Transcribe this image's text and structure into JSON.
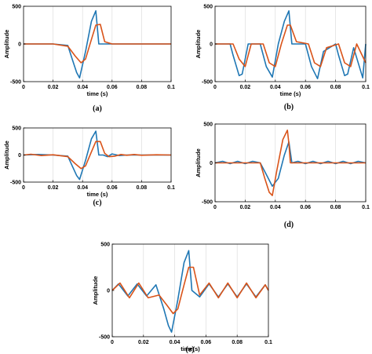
{
  "series_colors": [
    "#1f77b4",
    "#d95319"
  ],
  "chart_data": [
    {
      "type": "line",
      "caption": "(a)",
      "xlabel": "time (s)",
      "ylabel": "Amplitude",
      "xlim": [
        0,
        0.1
      ],
      "ylim": [
        -500,
        500
      ],
      "grid": "vertical",
      "xticks": [
        "0",
        "0.02",
        "0.04",
        "0.06",
        "0.08",
        "0.1"
      ],
      "yticks": [
        "-500",
        "0",
        "500"
      ],
      "series": [
        {
          "x": [
            0,
            0.02,
            0.03,
            0.033,
            0.036,
            0.038,
            0.042,
            0.046,
            0.049,
            0.051,
            0.055,
            0.1
          ],
          "y": [
            0,
            0,
            -20,
            -200,
            -380,
            -450,
            -100,
            300,
            440,
            0,
            0,
            0
          ]
        },
        {
          "x": [
            0,
            0.02,
            0.03,
            0.035,
            0.039,
            0.042,
            0.046,
            0.049,
            0.052,
            0.055,
            0.06,
            0.1
          ],
          "y": [
            0,
            0,
            -30,
            -160,
            -250,
            -200,
            60,
            250,
            260,
            30,
            0,
            0
          ]
        }
      ]
    },
    {
      "type": "line",
      "caption": "(b)",
      "xlabel": "time (s)",
      "ylabel": "Amplitude",
      "xlim": [
        0,
        0.1
      ],
      "ylim": [
        -500,
        500
      ],
      "grid": "vertical",
      "xticks": [
        "0",
        "0.02",
        "0.04",
        "0.06",
        "0.08",
        "0.1"
      ],
      "yticks": [
        "-500",
        "0",
        "500"
      ],
      "series": [
        {
          "x": [
            0,
            0.01,
            0.012,
            0.016,
            0.018,
            0.022,
            0.03,
            0.034,
            0.038,
            0.042,
            0.046,
            0.049,
            0.051,
            0.06,
            0.064,
            0.068,
            0.072,
            0.08,
            0.082,
            0.086,
            0.088,
            0.092,
            0.098,
            0.1
          ],
          "y": [
            0,
            0,
            -150,
            -420,
            -400,
            0,
            0,
            -300,
            -440,
            0,
            300,
            440,
            0,
            0,
            -300,
            -460,
            -100,
            0,
            -150,
            -420,
            -400,
            -50,
            -450,
            0
          ]
        },
        {
          "x": [
            0,
            0.012,
            0.016,
            0.02,
            0.024,
            0.032,
            0.036,
            0.04,
            0.044,
            0.048,
            0.05,
            0.054,
            0.062,
            0.066,
            0.07,
            0.074,
            0.082,
            0.086,
            0.09,
            0.094,
            0.1
          ],
          "y": [
            0,
            0,
            -200,
            -300,
            0,
            0,
            -250,
            -300,
            0,
            250,
            250,
            30,
            0,
            -250,
            -300,
            -50,
            0,
            -250,
            -300,
            0,
            -250
          ]
        }
      ]
    },
    {
      "type": "line",
      "caption": "(c)",
      "xlabel": "time (s)",
      "ylabel": "Amplitude",
      "xlim": [
        0,
        0.1
      ],
      "ylim": [
        -500,
        500
      ],
      "grid": "vertical",
      "xticks": [
        "0",
        "0.02",
        "0.04",
        "0.06",
        "0.08",
        "0.1"
      ],
      "yticks": [
        "-500",
        "0",
        "500"
      ],
      "series": [
        {
          "x": [
            0,
            0.01,
            0.02,
            0.03,
            0.033,
            0.036,
            0.038,
            0.042,
            0.046,
            0.049,
            0.051,
            0.054,
            0.057,
            0.06,
            0.065,
            0.07,
            0.1
          ],
          "y": [
            0,
            10,
            0,
            -20,
            -200,
            -380,
            -450,
            -100,
            300,
            440,
            0,
            0,
            -30,
            20,
            -10,
            0,
            0
          ]
        },
        {
          "x": [
            0,
            0.005,
            0.012,
            0.02,
            0.03,
            0.035,
            0.039,
            0.042,
            0.046,
            0.049,
            0.052,
            0.055,
            0.058,
            0.062,
            0.066,
            0.07,
            0.075,
            0.08,
            0.09,
            0.1
          ],
          "y": [
            0,
            15,
            -10,
            5,
            -30,
            -160,
            -250,
            -200,
            60,
            250,
            250,
            30,
            -30,
            -20,
            10,
            -5,
            10,
            -5,
            5,
            0
          ]
        }
      ]
    },
    {
      "type": "line",
      "caption": "(d)",
      "xlabel": "",
      "ylabel": "Amplitude",
      "xlim": [
        0,
        0.1
      ],
      "ylim": [
        -500,
        500
      ],
      "grid": "vertical",
      "xticks": [
        "0",
        "0.02",
        "0.04",
        "0.06",
        "0.08",
        "0.1"
      ],
      "yticks": [
        "-500",
        "0",
        "500"
      ],
      "series": [
        {
          "x": [
            0,
            0.005,
            0.01,
            0.015,
            0.02,
            0.025,
            0.03,
            0.034,
            0.038,
            0.042,
            0.046,
            0.049,
            0.051,
            0.055,
            0.06,
            0.065,
            0.07,
            0.075,
            0.08,
            0.085,
            0.09,
            0.095,
            0.1
          ],
          "y": [
            0,
            20,
            -10,
            20,
            -10,
            20,
            0,
            -150,
            -300,
            -200,
            100,
            270,
            0,
            20,
            -10,
            20,
            -10,
            20,
            -10,
            20,
            -10,
            20,
            0
          ]
        },
        {
          "x": [
            0,
            0.03,
            0.033,
            0.036,
            0.038,
            0.041,
            0.045,
            0.048,
            0.049,
            0.05,
            0.1
          ],
          "y": [
            0,
            0,
            -200,
            -380,
            -420,
            -100,
            300,
            420,
            250,
            0,
            0
          ]
        }
      ]
    },
    {
      "type": "line",
      "caption": "(e)",
      "xlabel": "time(s)",
      "ylabel": "Amplitude",
      "xlim": [
        0,
        0.1
      ],
      "ylim": [
        -500,
        500
      ],
      "grid": "vertical",
      "xticks": [
        "0",
        "0.02",
        "0.04",
        "0.06",
        "0.08",
        "0.1"
      ],
      "yticks": [
        "-500",
        "0",
        "500"
      ],
      "series": [
        {
          "x": [
            0,
            0.004,
            0.01,
            0.016,
            0.022,
            0.028,
            0.033,
            0.036,
            0.038,
            0.042,
            0.046,
            0.049,
            0.051,
            0.056,
            0.062,
            0.068,
            0.074,
            0.08,
            0.086,
            0.092,
            0.098,
            0.1
          ],
          "y": [
            0,
            70,
            -60,
            70,
            -60,
            60,
            -200,
            -380,
            -450,
            -100,
            300,
            430,
            0,
            -70,
            70,
            -70,
            70,
            -70,
            70,
            -70,
            60,
            0
          ]
        },
        {
          "x": [
            0,
            0.005,
            0.011,
            0.017,
            0.023,
            0.03,
            0.035,
            0.039,
            0.042,
            0.046,
            0.049,
            0.052,
            0.056,
            0.062,
            0.068,
            0.074,
            0.08,
            0.086,
            0.092,
            0.098,
            0.1
          ],
          "y": [
            0,
            80,
            -80,
            80,
            -80,
            -50,
            -160,
            -250,
            -200,
            60,
            250,
            250,
            -50,
            80,
            -80,
            80,
            -80,
            80,
            -80,
            60,
            0
          ]
        }
      ]
    }
  ]
}
